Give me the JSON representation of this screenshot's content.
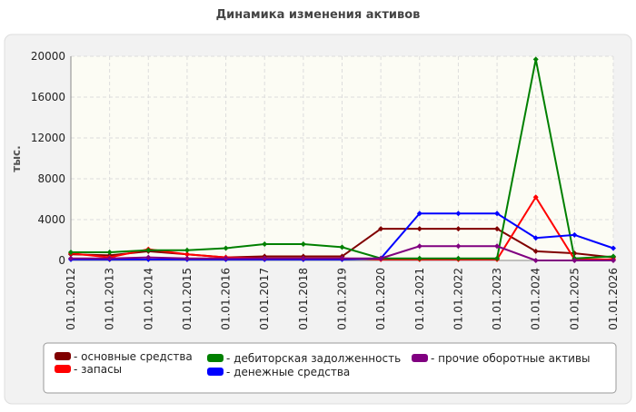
{
  "chart_data": {
    "type": "line",
    "title": "Динамика изменения активов",
    "y_label": "тыс.",
    "categories": [
      "01.01.2012",
      "01.01.2013",
      "01.01.2014",
      "01.01.2015",
      "01.01.2016",
      "01.01.2017",
      "01.01.2018",
      "01.01.2019",
      "01.01.2020",
      "01.01.2021",
      "01.01.2022",
      "01.01.2023",
      "01.01.2024",
      "01.01.2025",
      "01.01.2026"
    ],
    "series": [
      {
        "name": "- основные средства",
        "color": "#800000",
        "values": [
          600,
          500,
          900,
          600,
          300,
          400,
          400,
          400,
          3100,
          3100,
          3100,
          3100,
          900,
          700,
          300
        ]
      },
      {
        "name": "- запасы",
        "color": "#ff0000",
        "values": [
          700,
          300,
          1100,
          600,
          300,
          200,
          200,
          200,
          100,
          100,
          100,
          100,
          6200,
          100,
          100
        ]
      },
      {
        "name": "- дебиторская задолженность",
        "color": "#008000",
        "values": [
          800,
          800,
          1000,
          1000,
          1200,
          1600,
          1600,
          1300,
          200,
          200,
          200,
          200,
          19700,
          200,
          400
        ]
      },
      {
        "name": "- денежные средства",
        "color": "#0000ff",
        "values": [
          100,
          100,
          100,
          100,
          100,
          100,
          100,
          100,
          200,
          4600,
          4600,
          4600,
          2200,
          2500,
          1200
        ]
      },
      {
        "name": "- прочие оборотные активы",
        "color": "#800080",
        "values": [
          200,
          200,
          300,
          200,
          200,
          200,
          200,
          200,
          200,
          1400,
          1400,
          1400,
          0,
          0,
          0
        ]
      }
    ],
    "ylim": [
      0,
      20000
    ],
    "yticks": [
      0,
      4000,
      8000,
      12000,
      16000,
      20000
    ],
    "grid": true
  }
}
